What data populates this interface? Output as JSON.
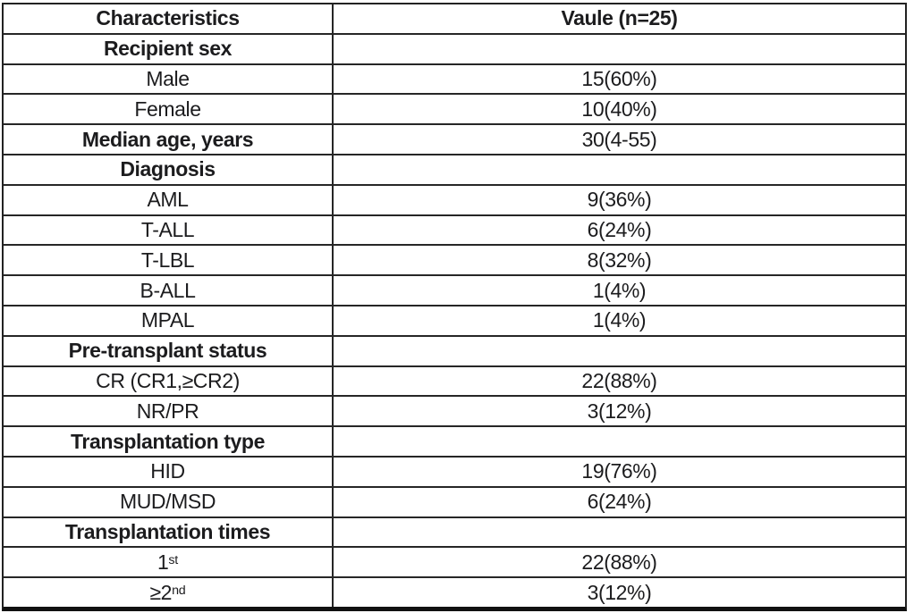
{
  "table": {
    "columns": [
      {
        "label": "Characteristics"
      },
      {
        "label": "Vaule (n=25)"
      }
    ],
    "rows": [
      {
        "type": "section",
        "label": "Recipient sex",
        "value": ""
      },
      {
        "type": "data",
        "label": "Male",
        "value": "15(60%)"
      },
      {
        "type": "data",
        "label": "Female",
        "value": "10(40%)"
      },
      {
        "type": "section",
        "label": "Median age, years",
        "value": "30(4-55)"
      },
      {
        "type": "section",
        "label": "Diagnosis",
        "value": ""
      },
      {
        "type": "data",
        "label": "AML",
        "value": "9(36%)"
      },
      {
        "type": "data",
        "label": "T-ALL",
        "value": "6(24%)"
      },
      {
        "type": "data",
        "label": "T-LBL",
        "value": "8(32%)"
      },
      {
        "type": "data",
        "label": "B-ALL",
        "value": "1(4%)"
      },
      {
        "type": "data",
        "label": "MPAL",
        "value": "1(4%)"
      },
      {
        "type": "section",
        "label": "Pre-transplant status",
        "value": ""
      },
      {
        "type": "data",
        "label": "CR (CR1,≥CR2)",
        "value": "22(88%)"
      },
      {
        "type": "data",
        "label": "NR/PR",
        "value": "3(12%)"
      },
      {
        "type": "section",
        "label": "Transplantation type",
        "value": ""
      },
      {
        "type": "data",
        "label": "HID",
        "value": "19(76%)"
      },
      {
        "type": "data",
        "label": "MUD/MSD",
        "value": "6(24%)"
      },
      {
        "type": "section",
        "label": "Transplantation times",
        "value": ""
      },
      {
        "type": "data",
        "label": "1",
        "sup": "st",
        "value": "22(88%)"
      },
      {
        "type": "data",
        "label": "≥2",
        "sup": "nd",
        "value": "3(12%)"
      }
    ],
    "colors": {
      "text": "#1c1c1e",
      "grid_line": "#262626",
      "outer_border": "#111111",
      "background": "#ffffff"
    }
  }
}
